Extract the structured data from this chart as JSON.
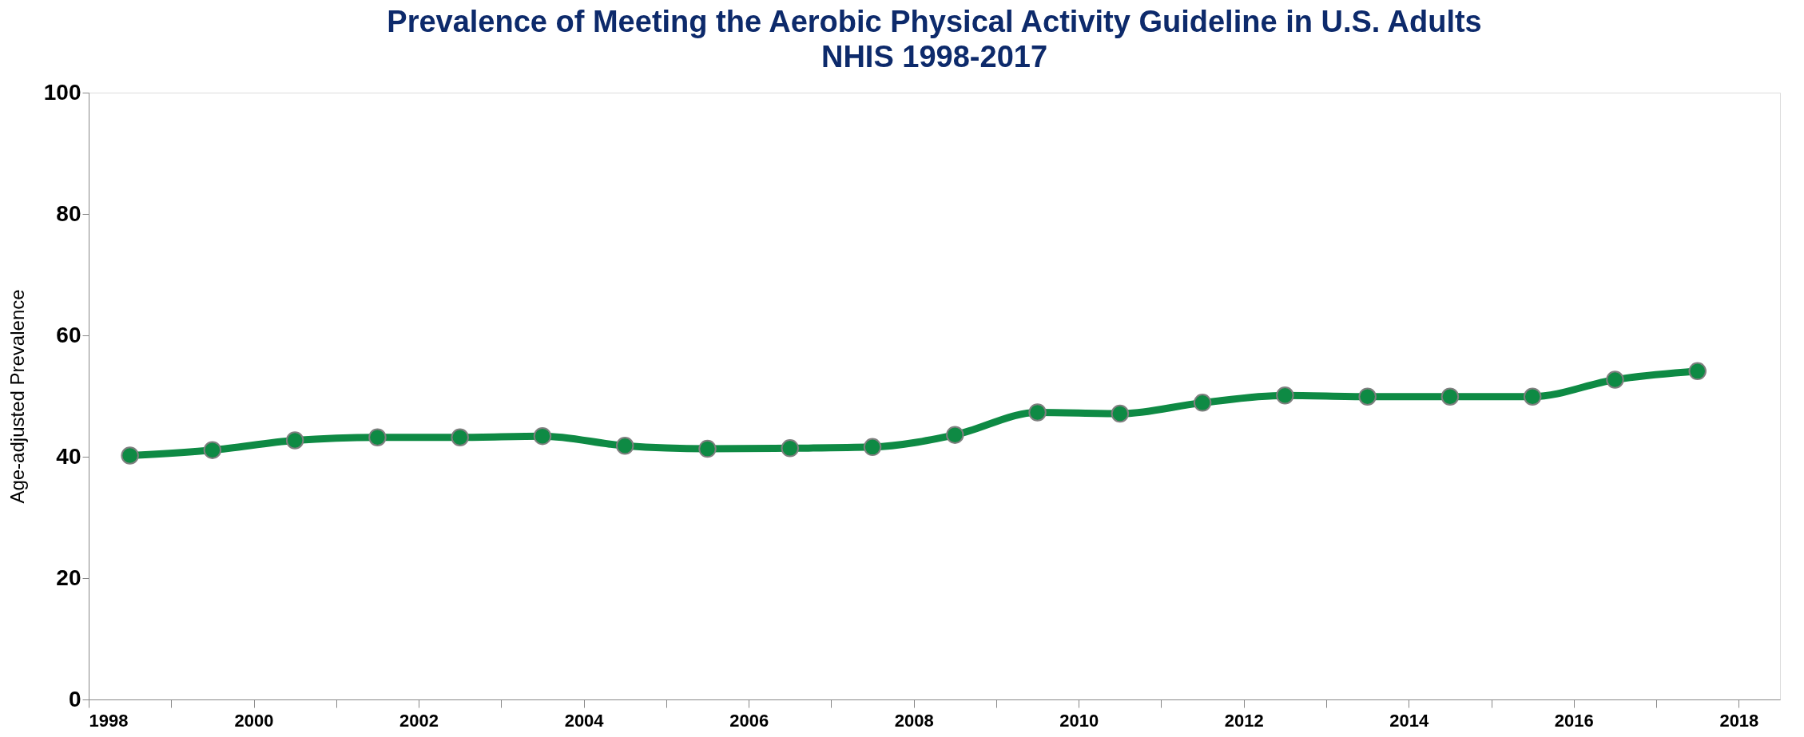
{
  "chart_data": {
    "type": "line",
    "title": "Prevalence of Meeting the Aerobic Physical Activity Guideline in U.S. Adults",
    "subtitle": "NHIS 1998-2017",
    "ylabel": "Age-adjusted Prevalence",
    "x": [
      1998.5,
      1999.5,
      2000.5,
      2001.5,
      2002.5,
      2003.5,
      2004.5,
      2005.5,
      2006.5,
      2007.5,
      2008.5,
      2009.5,
      2010.5,
      2011.5,
      2012.5,
      2013.5,
      2014.5,
      2015.5,
      2016.5,
      2017.5
    ],
    "series": [
      {
        "color": "#0e8a44",
        "values": [
          40.2,
          41.1,
          42.7,
          43.2,
          43.2,
          43.4,
          41.8,
          41.3,
          41.4,
          41.6,
          43.6,
          47.3,
          47.1,
          48.9,
          50.1,
          49.9,
          49.9,
          49.9,
          52.7,
          54.1
        ]
      }
    ],
    "xlim": [
      1998,
      2018.5
    ],
    "xticks": [
      1998,
      {
        "value": 1999,
        "label": null
      },
      2000,
      {
        "value": 2001,
        "label": null
      },
      2002,
      {
        "value": 2003,
        "label": null
      },
      2004,
      {
        "value": 2005,
        "label": null
      },
      2006,
      {
        "value": 2007,
        "label": null
      },
      2008,
      {
        "value": 2009,
        "label": null
      },
      2010,
      {
        "value": 2011,
        "label": null
      },
      2012,
      {
        "value": 2013,
        "label": null
      },
      2014,
      {
        "value": 2015,
        "label": null
      },
      2016,
      {
        "value": 2017,
        "label": null
      },
      2018
    ],
    "ylim": [
      0,
      100
    ],
    "yticks": [
      0,
      20,
      40,
      60,
      80,
      100
    ],
    "grid": false,
    "marker": "circle",
    "line_style": "solid"
  }
}
